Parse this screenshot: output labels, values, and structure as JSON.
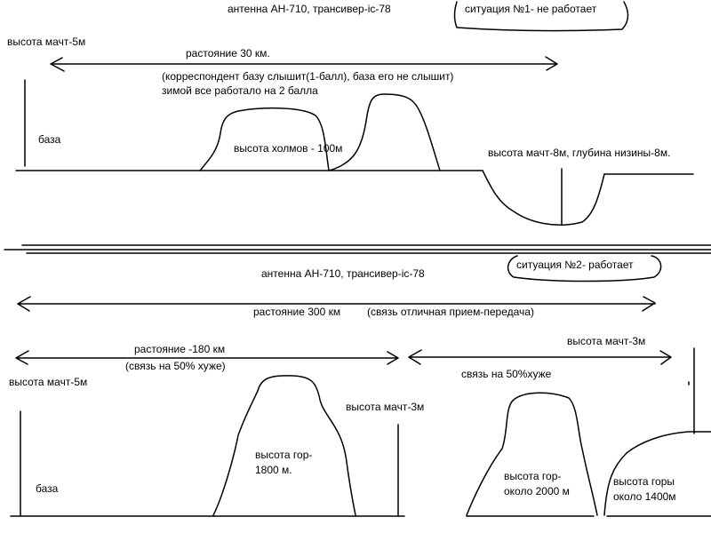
{
  "colors": {
    "ink": "#000000",
    "background": "#ffffff"
  },
  "situation1": {
    "header": "антенна АН-710, трансивер-ic-78",
    "badge": "ситуация №1- не работает",
    "mast_height_left": "высота мачт-5м",
    "distance": "растояние 30 км.",
    "note_line1": "(корреспондент базу слышит(1-балл), база его не слышит)",
    "note_line2": "зимой все работало на 2 балла",
    "base_label": "база",
    "hills_label": "высота холмов - 100м",
    "right_label": "высота мачт-8м, глубина низины-8м."
  },
  "situation2": {
    "header": "антенна АН-710, трансивер-ic-78",
    "badge": "ситуация №2- работает",
    "distance_total": "растояние 300 км",
    "link_quality": "(связь отличная прием-передача)",
    "distance_left": "растояние -180 км",
    "left_quality": "(связь на 50% хуже)",
    "right_quality": "связь на 50%хуже",
    "mast_height_left": "высота мачт-5м",
    "mast_height_middle": "высота мачт-3м",
    "mast_height_right": "высота мачт-3м",
    "base_label": "база",
    "mountain1_line1": "высота гор-",
    "mountain1_line2": "1800 м.",
    "mountain2_line1": "высота гор-",
    "mountain2_line2": "около 2000 м",
    "mountain3_line1": "высота горы",
    "mountain3_line2": "около 1400м"
  }
}
